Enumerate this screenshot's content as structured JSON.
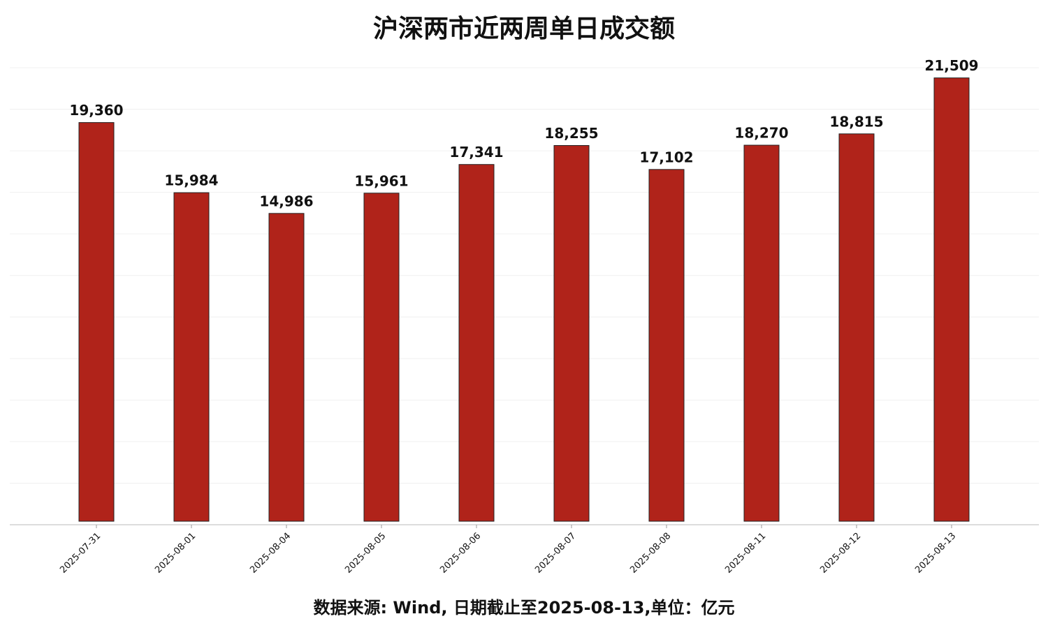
{
  "chart_data": {
    "type": "bar",
    "title": "沪深两市近两周单日成交额",
    "categories": [
      "2025-07-31",
      "2025-08-01",
      "2025-08-04",
      "2025-08-05",
      "2025-08-06",
      "2025-08-07",
      "2025-08-08",
      "2025-08-11",
      "2025-08-12",
      "2025-08-13"
    ],
    "values": [
      19360,
      15984,
      14986,
      15961,
      17341,
      18255,
      17102,
      18270,
      18815,
      21509
    ],
    "value_labels": [
      "19,360",
      "15,984",
      "14,986",
      "15,961",
      "17,341",
      "18,255",
      "17,102",
      "18,270",
      "18,815",
      "21,509"
    ],
    "color": "#b0231a",
    "ylim": [
      0,
      22000
    ],
    "yticks": [
      2000,
      4000,
      6000,
      8000,
      10000,
      12000,
      14000,
      16000,
      18000,
      20000,
      22000
    ],
    "grid": true,
    "source": "数据来源: Wind, 日期截止至2025-08-13,单位：亿元"
  }
}
